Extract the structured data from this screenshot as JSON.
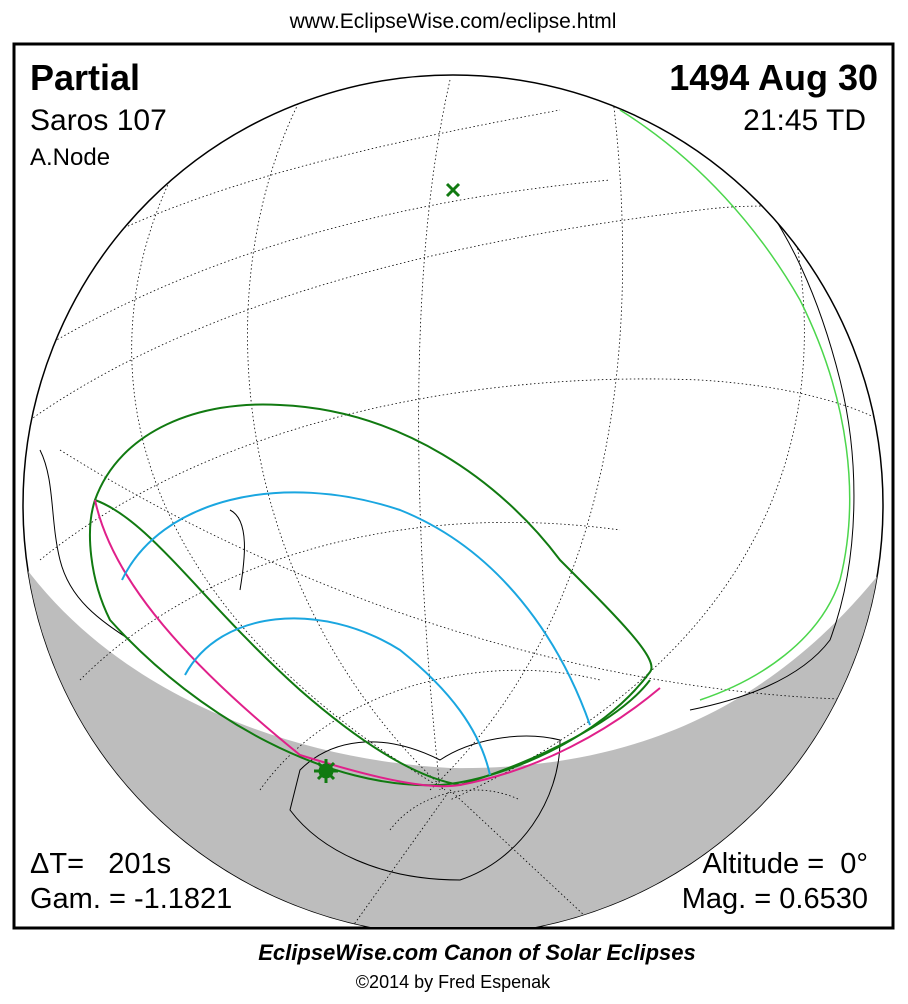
{
  "header": {
    "url": "www.EclipseWise.com/eclipse.html"
  },
  "panel": {
    "top_left": {
      "eclipse_type": "Partial",
      "saros": "Saros 107",
      "node": "A.Node"
    },
    "top_right": {
      "date": "1494 Aug 30",
      "time": "21:45 TD"
    },
    "bottom_left": {
      "delta_t": "ΔT=   201s",
      "gamma": "Gam. = -1.1821"
    },
    "bottom_right": {
      "altitude": "Altitude =  0°",
      "magnitude": "Mag. = 0.6530"
    }
  },
  "footer": {
    "title": "EclipseWise.com Canon of Solar Eclipses",
    "copyright": "©2014 by Fred Espenak"
  }
}
